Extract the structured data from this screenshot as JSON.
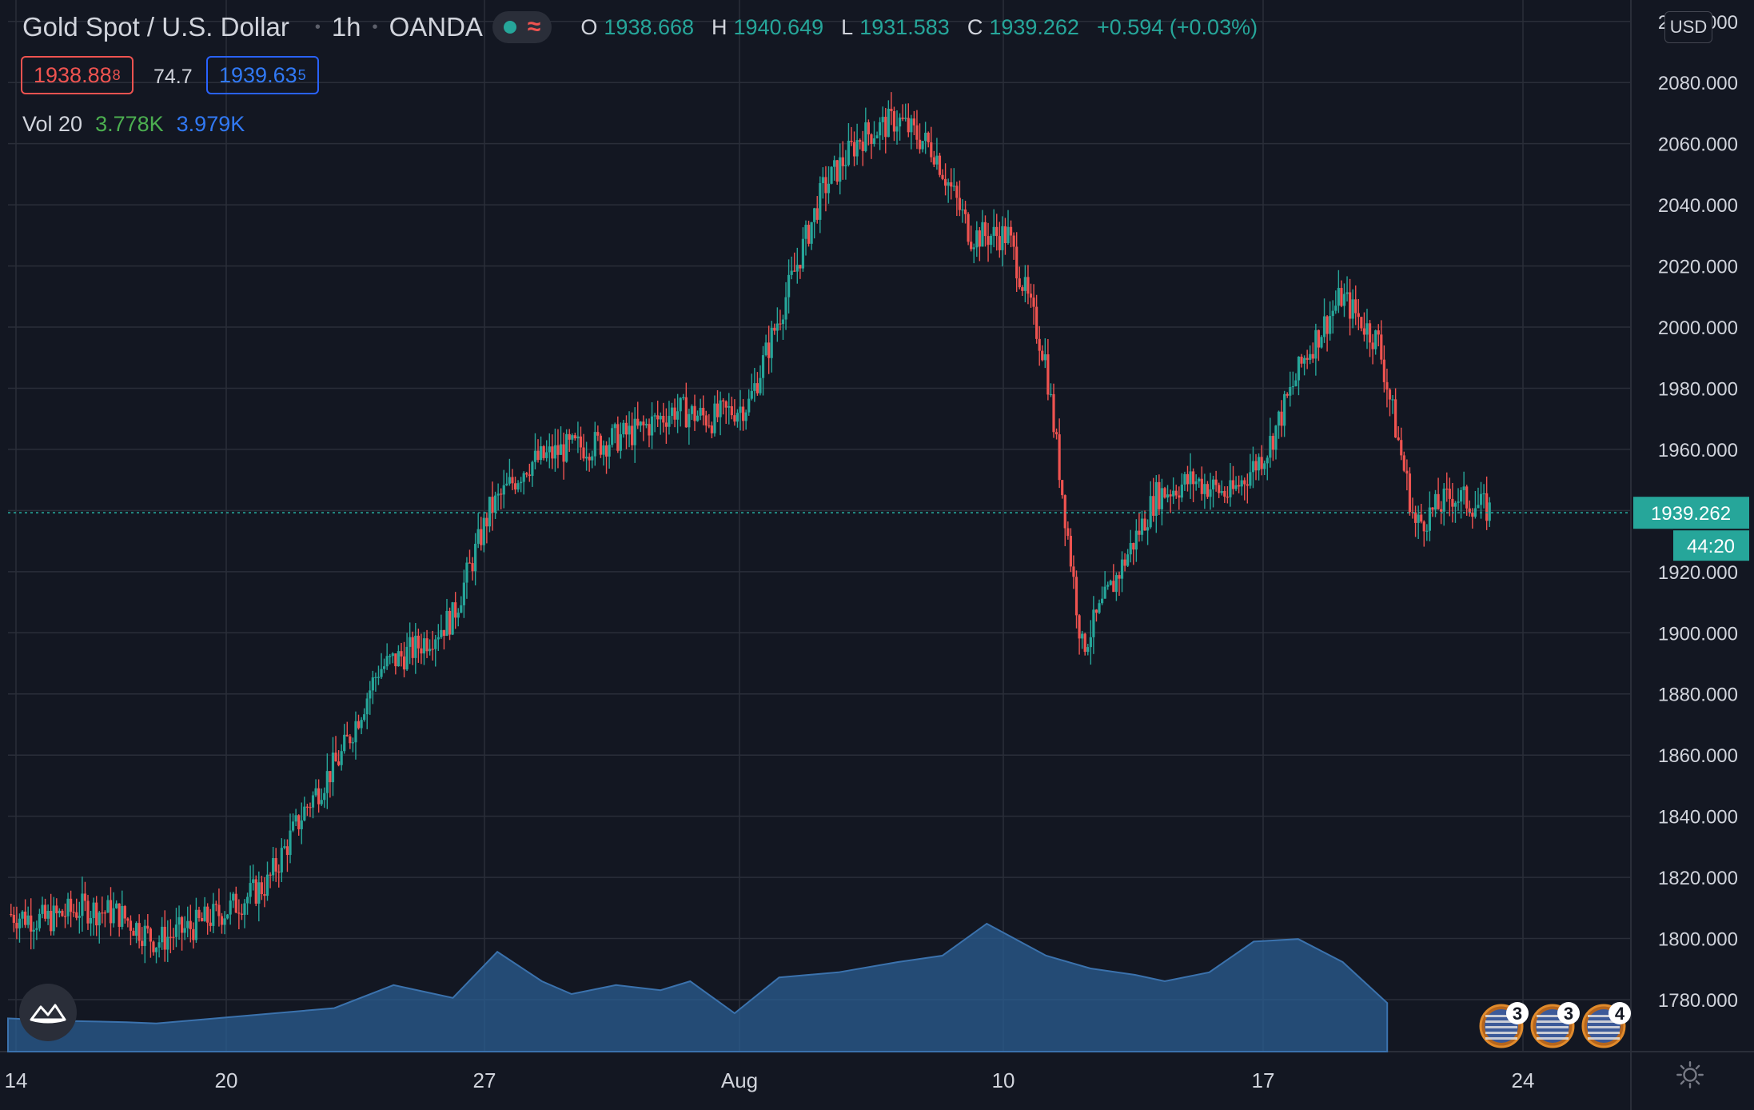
{
  "header": {
    "symbol": "Gold Spot / U.S. Dollar",
    "interval": "1h",
    "exchange": "OANDA",
    "ohlc": {
      "o_label": "O",
      "o": "1938.668",
      "h_label": "H",
      "h": "1940.649",
      "l_label": "L",
      "l": "1931.583",
      "c_label": "C",
      "c": "1939.262",
      "change": "+0.594 (+0.03%)"
    },
    "sell_price": "1938.88",
    "sell_pip": "8",
    "spread": "74.7",
    "buy_price": "1939.63",
    "buy_pip": "5",
    "volume_label": "Vol 20",
    "volume_value": "3.778K",
    "volume_ma": "3.979K",
    "currency": "USD"
  },
  "colors": {
    "up": "#26a69a",
    "down": "#ef5350",
    "volume_area": "#2b5d92",
    "grid": "#2a2e39",
    "background": "#131722",
    "axis_text": "#d1d4dc"
  },
  "icons": [
    "market-status-dot-icon",
    "wave-icon",
    "chart-logo-icon",
    "settings-gear-icon",
    "us-flag-event-icon"
  ],
  "chart_data": {
    "type": "candlestick",
    "title": "Gold Spot / U.S. Dollar",
    "interval": "1h",
    "y_ticks": [
      1780,
      1800,
      1820,
      1840,
      1860,
      1880,
      1900,
      1920,
      1940,
      1960,
      1980,
      2000,
      2020,
      2040,
      2060,
      2080,
      2100
    ],
    "y_tick_labels": [
      "1780.000",
      "1800.000",
      "1820.000",
      "1840.000",
      "1860.000",
      "1880.000",
      "1900.000",
      "1920.000",
      "",
      "1960.000",
      "1980.000",
      "2000.000",
      "2020.000",
      "2040.000",
      "2060.000",
      "2080.000",
      "2100.000"
    ],
    "ylim": [
      1763,
      2107
    ],
    "x_tick_labels": [
      "14",
      "20",
      "27",
      "Aug",
      "10",
      "17",
      "24"
    ],
    "current_price": "1939.262",
    "countdown": "44:20",
    "grid": true,
    "close_path": [
      [
        "Jul 14",
        1808
      ],
      [
        "Jul 15",
        1806
      ],
      [
        "Jul 16",
        1810
      ],
      [
        "Jul 17",
        1808
      ],
      [
        "Jul 18",
        1799
      ],
      [
        "Jul 19",
        1804
      ],
      [
        "Jul 20",
        1810
      ],
      [
        "Jul 21",
        1818
      ],
      [
        "Jul 22",
        1842
      ],
      [
        "Jul 23",
        1860
      ],
      [
        "Jul 24",
        1888
      ],
      [
        "Jul 25",
        1895
      ],
      [
        "Jul 26",
        1905
      ],
      [
        "Jul 27",
        1940
      ],
      [
        "Jul 28",
        1955
      ],
      [
        "Jul 29",
        1960
      ],
      [
        "Jul 30",
        1962
      ],
      [
        "Jul 31",
        1966
      ],
      [
        "Aug 1",
        1973
      ],
      [
        "Aug 2",
        1970
      ],
      [
        "Aug 3",
        1975
      ],
      [
        "Aug 4",
        2010
      ],
      [
        "Aug 5",
        2045
      ],
      [
        "Aug 6",
        2062
      ],
      [
        "Aug 7",
        2068
      ],
      [
        "Aug 8",
        2058
      ],
      [
        "Aug 9",
        2030
      ],
      [
        "Aug 10",
        2030
      ],
      [
        "Aug 11",
        1990
      ],
      [
        "Aug 12",
        1895
      ],
      [
        "Aug 13",
        1920
      ],
      [
        "Aug 14",
        1945
      ],
      [
        "Aug 15",
        1950
      ],
      [
        "Aug 16",
        1945
      ],
      [
        "Aug 17",
        1960
      ],
      [
        "Aug 18",
        1990
      ],
      [
        "Aug 19",
        2010
      ],
      [
        "Aug 20",
        1995
      ],
      [
        "Aug 21",
        1935
      ],
      [
        "Aug 22",
        1945
      ],
      [
        "Aug 23",
        1940
      ]
    ],
    "volume": {
      "name": "Vol 20",
      "last": "3.778K",
      "ma": "3.979K",
      "ma_path": [
        [
          0,
          0.26
        ],
        [
          0.04,
          0.24
        ],
        [
          0.08,
          0.23
        ],
        [
          0.1,
          0.22
        ],
        [
          0.13,
          0.25
        ],
        [
          0.18,
          0.3
        ],
        [
          0.22,
          0.34
        ],
        [
          0.26,
          0.52
        ],
        [
          0.3,
          0.42
        ],
        [
          0.33,
          0.78
        ],
        [
          0.36,
          0.55
        ],
        [
          0.38,
          0.45
        ],
        [
          0.41,
          0.52
        ],
        [
          0.44,
          0.48
        ],
        [
          0.46,
          0.55
        ],
        [
          0.49,
          0.3
        ],
        [
          0.52,
          0.58
        ],
        [
          0.56,
          0.62
        ],
        [
          0.6,
          0.7
        ],
        [
          0.63,
          0.75
        ],
        [
          0.66,
          1.0
        ],
        [
          0.7,
          0.75
        ],
        [
          0.73,
          0.65
        ],
        [
          0.76,
          0.6
        ],
        [
          0.78,
          0.55
        ],
        [
          0.81,
          0.62
        ],
        [
          0.84,
          0.86
        ],
        [
          0.87,
          0.88
        ],
        [
          0.9,
          0.7
        ],
        [
          0.93,
          0.38
        ]
      ]
    },
    "event_markers": [
      {
        "label": "3",
        "icon": "us-flag-event-icon"
      },
      {
        "label": "3",
        "icon": "us-flag-event-icon"
      },
      {
        "label": "4",
        "icon": "us-flag-event-icon"
      }
    ]
  }
}
